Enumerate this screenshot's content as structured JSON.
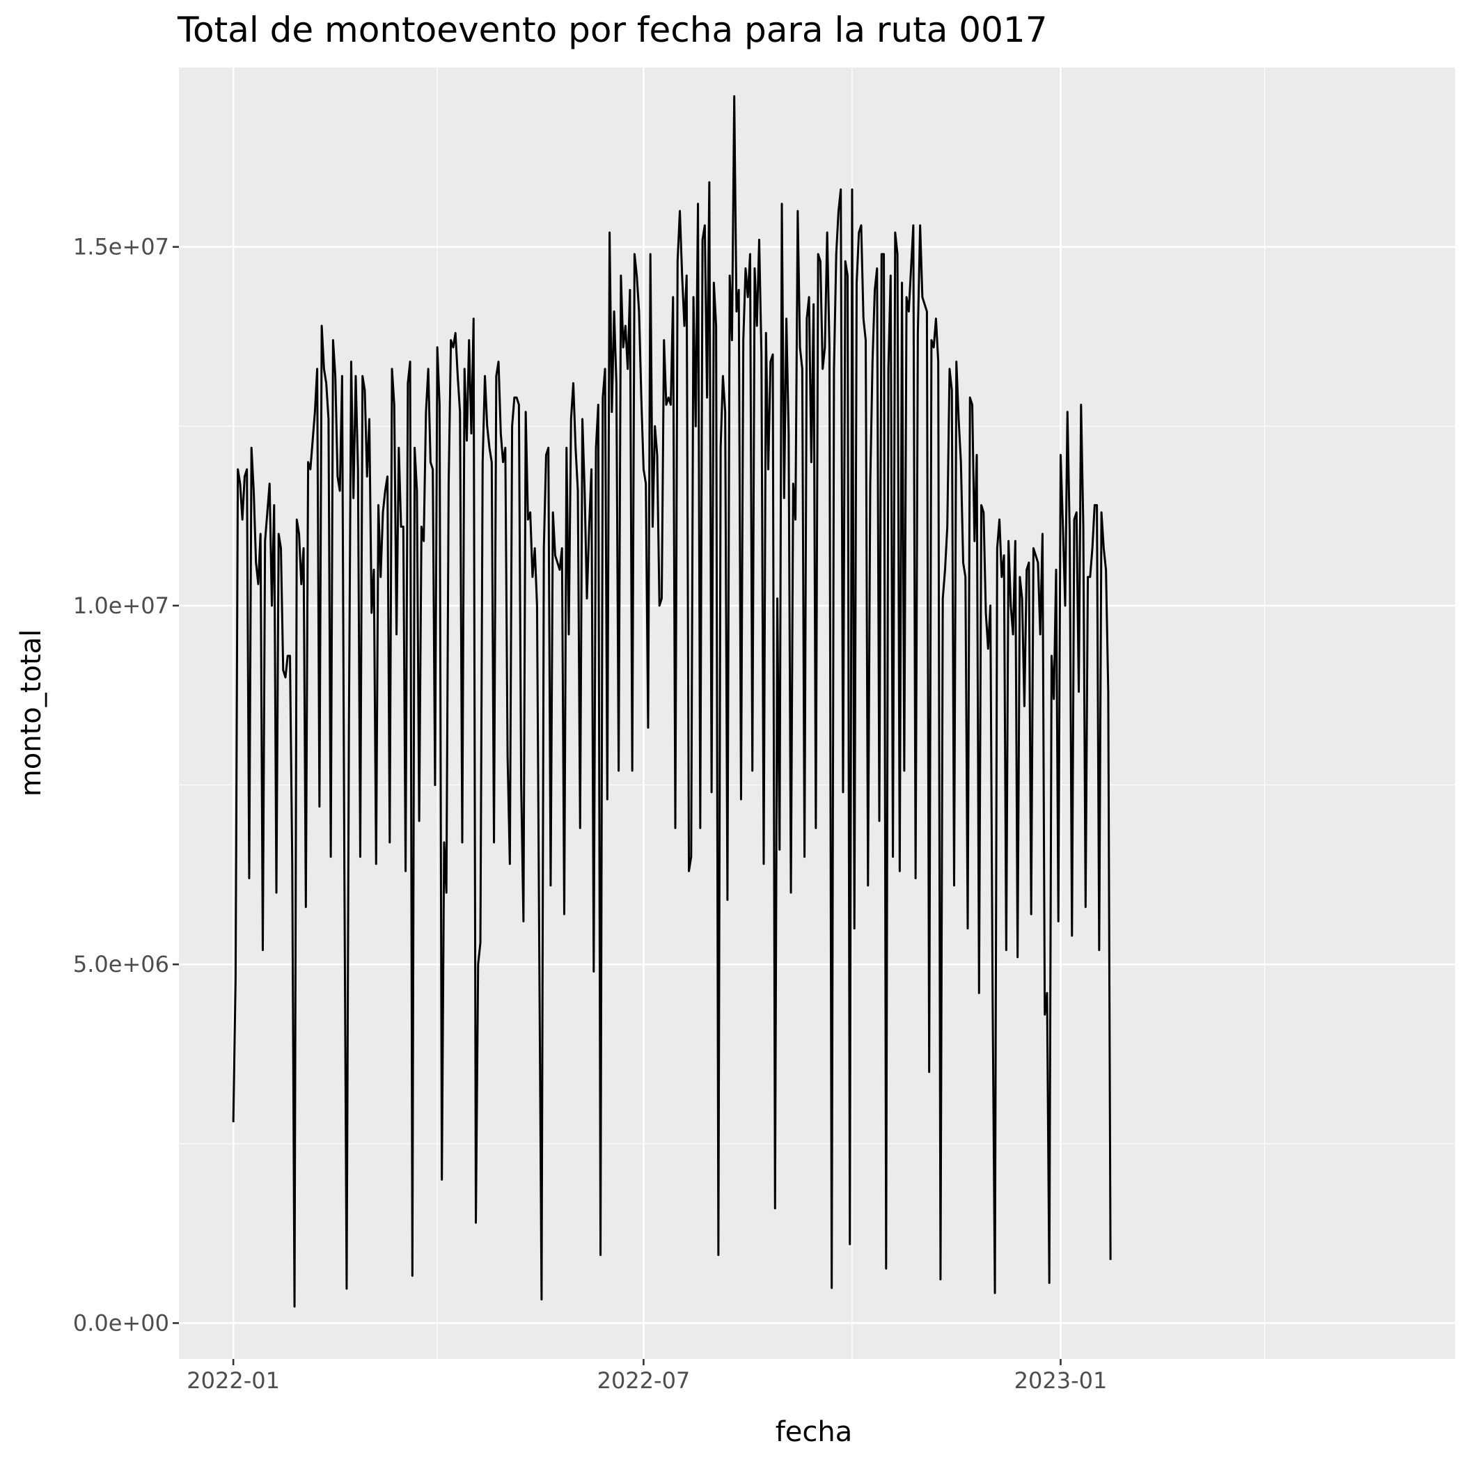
{
  "chart_data": {
    "type": "line",
    "title": "Total de montoevento por fecha para la ruta 0017",
    "xlabel": "fecha",
    "ylabel": "monto_total",
    "x_range": [
      "2021-12-08",
      "2023-06-24"
    ],
    "ylim": [
      -500000,
      17500000
    ],
    "x_ticks": [
      {
        "date": "2022-01-01",
        "label": "2022-01"
      },
      {
        "date": "2022-07-01",
        "label": "2022-07"
      },
      {
        "date": "2023-01-01",
        "label": "2023-01"
      }
    ],
    "y_ticks": [
      {
        "value": 0,
        "label": "0.0e+00"
      },
      {
        "value": 5000000,
        "label": "5.0e+06"
      },
      {
        "value": 10000000,
        "label": "1.0e+07"
      },
      {
        "value": 15000000,
        "label": "1.5e+07"
      }
    ],
    "x_minor_dates": [
      "2022-04-01",
      "2022-10-01",
      "2023-04-01"
    ],
    "y_minor_values": [
      2500000,
      7500000,
      12500000
    ],
    "series": [
      {
        "name": "monto_total",
        "start_date": "2022-01-01",
        "values": [
          2800000,
          4800000,
          11900000,
          11700000,
          11200000,
          11800000,
          11900000,
          6200000,
          12200000,
          11600000,
          10600000,
          10300000,
          11000000,
          5200000,
          10900000,
          11300000,
          11700000,
          10000000,
          11400000,
          6000000,
          11000000,
          10800000,
          9100000,
          9000000,
          9300000,
          9300000,
          6400000,
          230000,
          11200000,
          11000000,
          10300000,
          10800000,
          5800000,
          12000000,
          11900000,
          12300000,
          12700000,
          13300000,
          7200000,
          13900000,
          13300000,
          13100000,
          12600000,
          6500000,
          13700000,
          13200000,
          11800000,
          11600000,
          13200000,
          6300000,
          480000,
          8300000,
          13400000,
          11500000,
          13200000,
          11900000,
          6500000,
          13200000,
          13000000,
          11800000,
          12600000,
          9900000,
          10500000,
          6400000,
          11400000,
          10400000,
          11300000,
          11600000,
          11800000,
          6700000,
          13300000,
          12800000,
          9600000,
          12200000,
          11100000,
          11100000,
          6300000,
          13100000,
          13400000,
          660000,
          12200000,
          11600000,
          7000000,
          11100000,
          10900000,
          12700000,
          13300000,
          12000000,
          11900000,
          7500000,
          13600000,
          12800000,
          2000000,
          6700000,
          6000000,
          11700000,
          13700000,
          13600000,
          13800000,
          13200000,
          12700000,
          6700000,
          13300000,
          12300000,
          13700000,
          12400000,
          14000000,
          1400000,
          5000000,
          5300000,
          12000000,
          13200000,
          12500000,
          12200000,
          12000000,
          6700000,
          13200000,
          13400000,
          12400000,
          12000000,
          12200000,
          7900000,
          6400000,
          12500000,
          12900000,
          12900000,
          12800000,
          7500000,
          5600000,
          12700000,
          11200000,
          11300000,
          10400000,
          10800000,
          10000000,
          5100000,
          330000,
          10800000,
          12100000,
          12200000,
          6100000,
          11300000,
          10700000,
          10600000,
          10500000,
          10800000,
          5700000,
          12200000,
          9600000,
          12600000,
          13100000,
          12200000,
          11600000,
          6900000,
          12600000,
          11600000,
          10100000,
          11100000,
          11900000,
          4900000,
          12200000,
          12800000,
          950000,
          12900000,
          13300000,
          7300000,
          15200000,
          12700000,
          14100000,
          13100000,
          7700000,
          14600000,
          13600000,
          13900000,
          13300000,
          14400000,
          7700000,
          14900000,
          14600000,
          14100000,
          12900000,
          11900000,
          11700000,
          8300000,
          14900000,
          11100000,
          12500000,
          12100000,
          10000000,
          10100000,
          13700000,
          12800000,
          12900000,
          12800000,
          14300000,
          6900000,
          14800000,
          15500000,
          14600000,
          13900000,
          14600000,
          6300000,
          6500000,
          14300000,
          12500000,
          15600000,
          6900000,
          15100000,
          15300000,
          12900000,
          15900000,
          7400000,
          14500000,
          13900000,
          950000,
          12200000,
          13200000,
          12700000,
          5900000,
          14600000,
          13700000,
          17100000,
          14100000,
          14400000,
          7300000,
          13700000,
          14700000,
          14300000,
          14900000,
          7700000,
          14700000,
          13900000,
          15100000,
          13500000,
          6400000,
          13800000,
          11900000,
          13400000,
          13500000,
          1600000,
          10100000,
          6600000,
          15600000,
          11500000,
          14000000,
          12400000,
          6000000,
          11700000,
          11200000,
          15500000,
          13600000,
          13300000,
          6500000,
          14000000,
          14300000,
          12000000,
          14200000,
          6900000,
          14900000,
          14800000,
          13300000,
          13600000,
          15200000,
          13600000,
          490000,
          13300000,
          14900000,
          15500000,
          15800000,
          7400000,
          14800000,
          14600000,
          1100000,
          15800000,
          5500000,
          14500000,
          15200000,
          15300000,
          14000000,
          13700000,
          6100000,
          11700000,
          13400000,
          14400000,
          14700000,
          7000000,
          14900000,
          14900000,
          760000,
          13300000,
          14600000,
          6500000,
          15200000,
          14900000,
          6300000,
          14500000,
          7700000,
          14300000,
          14100000,
          14700000,
          15300000,
          6200000,
          13800000,
          15300000,
          14300000,
          14200000,
          14100000,
          3500000,
          13700000,
          13600000,
          14000000,
          13400000,
          610000,
          10100000,
          10500000,
          11100000,
          13300000,
          13000000,
          6100000,
          13400000,
          12600000,
          12000000,
          10600000,
          10400000,
          5500000,
          12900000,
          12800000,
          10900000,
          12100000,
          4600000,
          11400000,
          11300000,
          9900000,
          9400000,
          10000000,
          4500000,
          420000,
          10800000,
          11200000,
          10400000,
          10700000,
          5200000,
          10900000,
          10000000,
          9600000,
          10900000,
          5100000,
          10400000,
          10100000,
          8600000,
          10500000,
          10600000,
          5700000,
          10800000,
          10700000,
          10600000,
          9600000,
          11000000,
          4300000,
          4600000,
          560000,
          9300000,
          8700000,
          10500000,
          5600000,
          12100000,
          11100000,
          10000000,
          12700000,
          11000000,
          5400000,
          11200000,
          11300000,
          8800000,
          12800000,
          11100000,
          5800000,
          10400000,
          10400000,
          10800000,
          11400000,
          11400000,
          5200000,
          11300000,
          10800000,
          10500000,
          8800000,
          880000
        ]
      }
    ]
  }
}
